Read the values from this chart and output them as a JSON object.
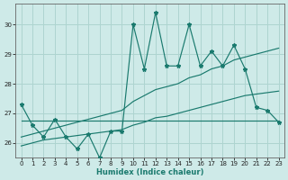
{
  "x": [
    0,
    1,
    2,
    3,
    4,
    5,
    6,
    7,
    8,
    9,
    10,
    11,
    12,
    13,
    14,
    15,
    16,
    17,
    18,
    19,
    20,
    21,
    22,
    23
  ],
  "y_main": [
    27.3,
    26.6,
    26.2,
    26.8,
    26.2,
    25.8,
    26.3,
    25.5,
    26.4,
    26.4,
    30.0,
    28.5,
    30.4,
    28.6,
    28.6,
    30.0,
    28.6,
    29.1,
    28.6,
    29.3,
    28.5,
    27.2,
    27.1,
    26.7
  ],
  "y_upper": [
    26.2,
    26.3,
    26.4,
    26.5,
    26.6,
    26.7,
    26.8,
    26.9,
    27.0,
    27.1,
    27.4,
    27.6,
    27.8,
    27.9,
    28.0,
    28.2,
    28.3,
    28.5,
    28.6,
    28.8,
    28.9,
    29.0,
    29.1,
    29.2
  ],
  "y_lower": [
    25.9,
    26.0,
    26.1,
    26.15,
    26.2,
    26.25,
    26.3,
    26.35,
    26.4,
    26.45,
    26.6,
    26.7,
    26.85,
    26.9,
    27.0,
    27.1,
    27.2,
    27.3,
    27.4,
    27.5,
    27.6,
    27.65,
    27.7,
    27.75
  ],
  "y_flat": [
    26.75,
    26.75,
    26.75,
    26.75,
    26.75,
    26.75,
    26.75,
    26.75,
    26.75,
    26.75,
    26.75,
    26.75,
    26.75,
    26.75,
    26.75,
    26.75,
    26.75,
    26.75,
    26.75,
    26.75,
    26.75,
    26.75,
    26.75,
    26.75
  ],
  "bg_color": "#ceeae8",
  "line_color": "#1a7a6e",
  "grid_color": "#aed4d0",
  "xlabel": "Humidex (Indice chaleur)",
  "ylim": [
    25.5,
    30.7
  ],
  "xlim": [
    -0.5,
    23.5
  ],
  "yticks": [
    26,
    27,
    28,
    29,
    30
  ],
  "xticks": [
    0,
    1,
    2,
    3,
    4,
    5,
    6,
    7,
    8,
    9,
    10,
    11,
    12,
    13,
    14,
    15,
    16,
    17,
    18,
    19,
    20,
    21,
    22,
    23
  ]
}
